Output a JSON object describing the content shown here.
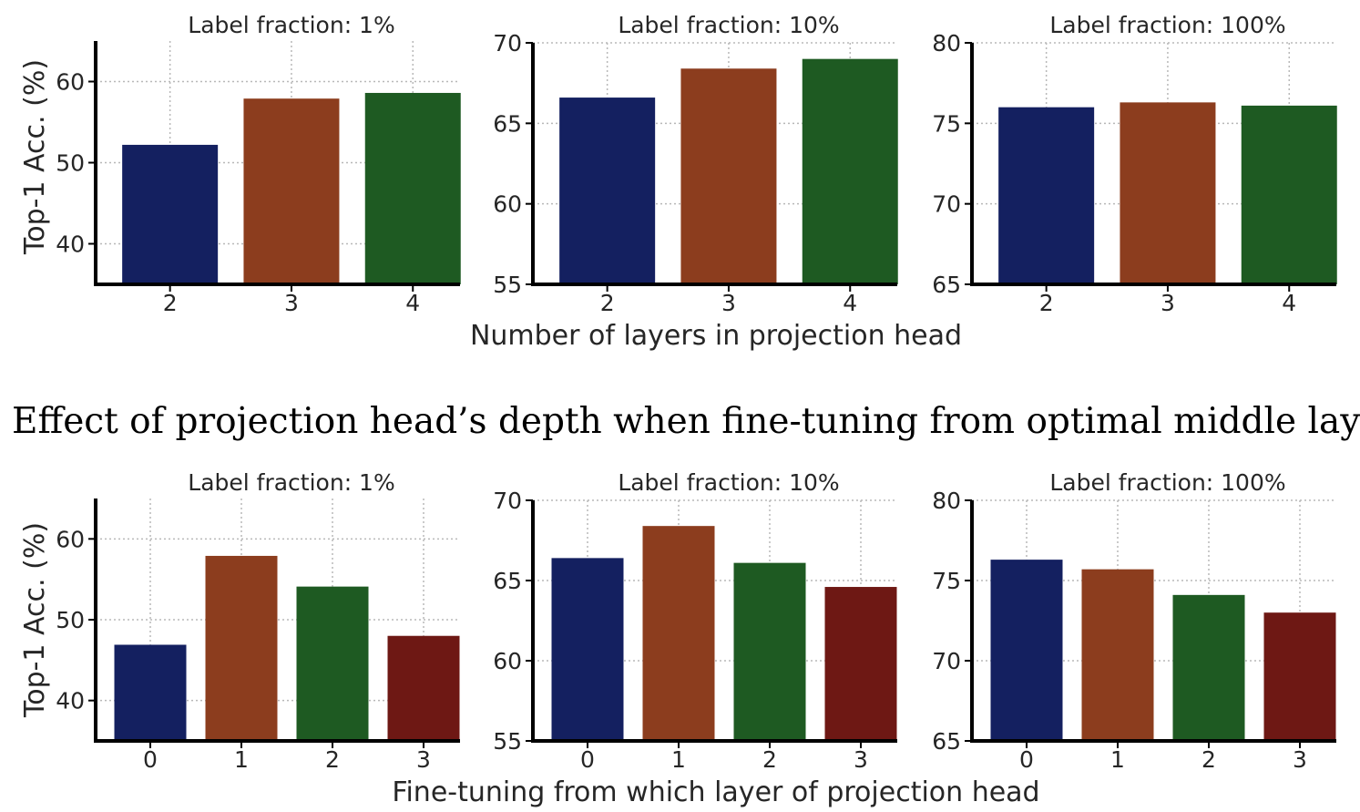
{
  "colors": [
    "#142060",
    "#8c3d1e",
    "#1e5a22",
    "#6e1814"
  ],
  "figure_a": {
    "xlabel": "Number of layers in projection head",
    "ylabel": "Top-1 Acc. (%)",
    "caption": "(a)  Effect of projection head’s depth when fine-tuning from optimal middle layer."
  },
  "figure_b": {
    "xlabel": "Fine-tuning from which layer of projection head",
    "ylabel": "Top-1 Acc. (%)"
  },
  "chart_data": [
    {
      "type": "bar",
      "title": "Label fraction: 1%",
      "categories": [
        "2",
        "3",
        "4"
      ],
      "values": [
        52.2,
        57.9,
        58.6
      ],
      "ylim": [
        35,
        65
      ],
      "yticks": [
        40,
        50,
        60
      ],
      "grid": true
    },
    {
      "type": "bar",
      "title": "Label fraction: 10%",
      "categories": [
        "2",
        "3",
        "4"
      ],
      "values": [
        66.6,
        68.4,
        69.0
      ],
      "ylim": [
        55,
        70
      ],
      "yticks": [
        55,
        60,
        65,
        70
      ],
      "grid": true
    },
    {
      "type": "bar",
      "title": "Label fraction: 100%",
      "categories": [
        "2",
        "3",
        "4"
      ],
      "values": [
        76.0,
        76.3,
        76.1
      ],
      "ylim": [
        65,
        80
      ],
      "yticks": [
        65,
        70,
        75,
        80
      ],
      "grid": true
    },
    {
      "type": "bar",
      "title": "Label fraction: 1%",
      "categories": [
        "0",
        "1",
        "2",
        "3"
      ],
      "values": [
        46.9,
        57.9,
        54.1,
        48.0
      ],
      "ylim": [
        35,
        65
      ],
      "yticks": [
        40,
        50,
        60
      ],
      "grid": true
    },
    {
      "type": "bar",
      "title": "Label fraction: 10%",
      "categories": [
        "0",
        "1",
        "2",
        "3"
      ],
      "values": [
        66.4,
        68.4,
        66.1,
        64.6
      ],
      "ylim": [
        55,
        70
      ],
      "yticks": [
        55,
        60,
        65,
        70
      ],
      "grid": true
    },
    {
      "type": "bar",
      "title": "Label fraction: 100%",
      "categories": [
        "0",
        "1",
        "2",
        "3"
      ],
      "values": [
        76.3,
        75.7,
        74.1,
        73.0
      ],
      "ylim": [
        65,
        80
      ],
      "yticks": [
        65,
        70,
        75,
        80
      ],
      "grid": true
    }
  ]
}
